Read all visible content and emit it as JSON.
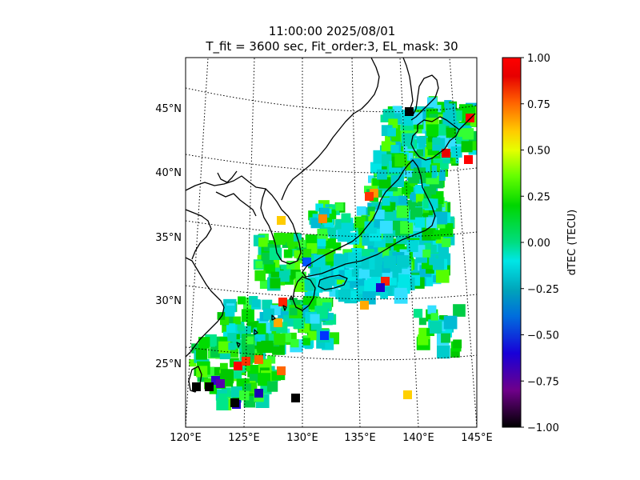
{
  "title": {
    "line1": "11:00:00 2025/08/01",
    "line2": "T_fit = 3600 sec, Fit_order:3, EL_mask: 30"
  },
  "map": {
    "lon_range": [
      120,
      145
    ],
    "lat_range": [
      20,
      49
    ],
    "lon_ticks": [
      "120°E",
      "125°E",
      "130°E",
      "135°E",
      "140°E",
      "145°E"
    ],
    "lat_ticks": [
      "25°N",
      "30°N",
      "35°N",
      "40°N",
      "45°N"
    ],
    "graticule": "dotted",
    "coastline_color": "#000000"
  },
  "colorbar": {
    "label": "dTEC (TECU)",
    "min": -1.0,
    "max": 1.0,
    "ticks": [
      "1.00",
      "0.75",
      "0.50",
      "0.25",
      "0.00",
      "−0.25",
      "−0.50",
      "−0.75",
      "−1.00"
    ],
    "colormap": "nipy_spectral-like"
  }
}
